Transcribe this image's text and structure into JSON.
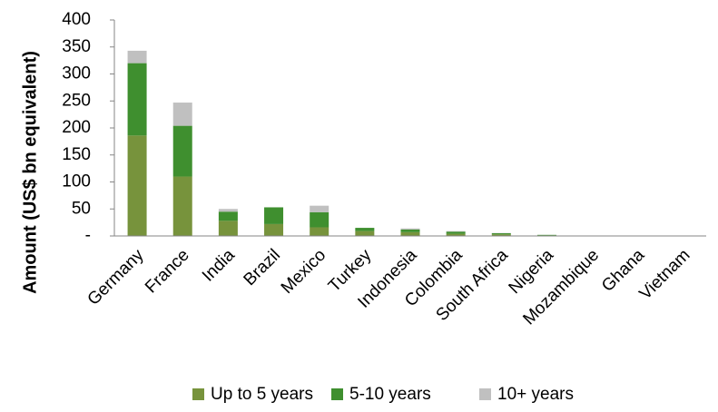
{
  "chart_data": {
    "type": "bar",
    "stacked": true,
    "title": "",
    "xlabel": "",
    "ylabel": "Amount (US$ bn equivalent)",
    "ylim": [
      0,
      400
    ],
    "yticks": [
      0,
      50,
      100,
      150,
      200,
      250,
      300,
      350,
      400
    ],
    "ytick_labels": [
      "-",
      "50",
      "100",
      "150",
      "200",
      "250",
      "300",
      "350",
      "400"
    ],
    "grid": false,
    "legend_position": "bottom",
    "categories": [
      "Germany",
      "France",
      "India",
      "Brazil",
      "Mexico",
      "Turkey",
      "Indonesia",
      "Colombia",
      "South Africa",
      "Nigeria",
      "Mozambique",
      "Ghana",
      "Vietnam"
    ],
    "series": [
      {
        "name": "Up to 5 years",
        "color": "#77933c",
        "values": [
          186,
          110,
          28,
          22,
          16,
          9,
          7,
          4,
          3,
          1,
          0.3,
          0.2,
          0.1
        ]
      },
      {
        "name": "5-10 years",
        "color": "#3f8f2f",
        "values": [
          134,
          94,
          17,
          31,
          28,
          6,
          5,
          4,
          2,
          1,
          0.2,
          0.1,
          0.1
        ]
      },
      {
        "name": "10+ years",
        "color": "#c0c0c0",
        "values": [
          23,
          43,
          5,
          0,
          12,
          0,
          2,
          1,
          0.5,
          0,
          0,
          0,
          0
        ]
      }
    ]
  }
}
